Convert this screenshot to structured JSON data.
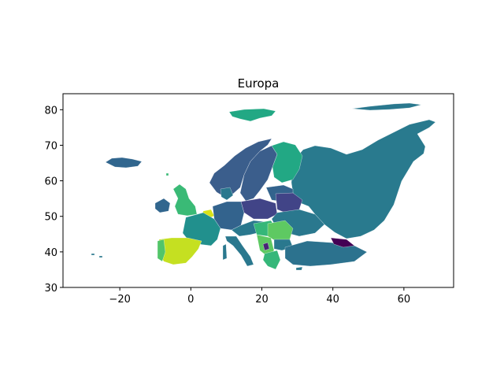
{
  "title": "Europa",
  "colormap": "viridis",
  "colors": {
    "teal_dark": "#2a788e",
    "teal_russia": "#297a8e",
    "blue_scandinavia": "#3b5e8c",
    "blue_grey": "#33638d",
    "indigo_poland": "#414487",
    "green_finland": "#22a884",
    "green_balkans": "#35b779",
    "green_light": "#5ec962",
    "green_uk": "#3aba76",
    "teal_france": "#21908d",
    "yellow_spain": "#c5e021",
    "yellow_benelux": "#d8e219",
    "purple_georgia": "#440154",
    "dark_purple": "#482475",
    "green_portugal": "#52c569",
    "navy_iceland": "#31668e",
    "navy_turkey": "#2c728e"
  },
  "chart_data": {
    "type": "choropleth",
    "title": "Europa",
    "xlim": [
      -36,
      74
    ],
    "ylim": [
      30,
      84.5
    ],
    "xticks": [
      -20,
      0,
      20,
      40,
      60
    ],
    "yticks": [
      30,
      40,
      50,
      60,
      70,
      80
    ],
    "xtick_labels": [
      "−20",
      "0",
      "20",
      "40",
      "60"
    ],
    "ytick_labels": [
      "30",
      "40",
      "50",
      "60",
      "70",
      "80"
    ],
    "grid": false,
    "legend": "none"
  }
}
